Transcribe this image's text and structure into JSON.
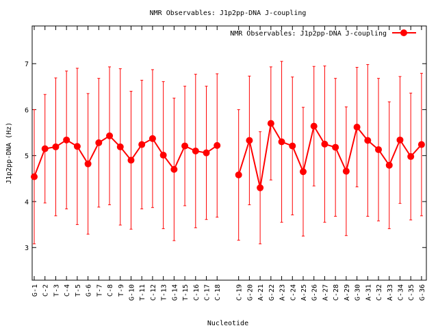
{
  "chart_data": {
    "type": "line",
    "title": "NMR Observables: J1p2pp-DNA J-coupling",
    "xlabel": "Nucleotide",
    "ylabel": "J1p2pp-DNA (Hz)",
    "ylim": [
      2.29,
      7.82
    ],
    "yticks": [
      3,
      4,
      5,
      6,
      7
    ],
    "grid": false,
    "legend": {
      "position": "top-right",
      "entries": [
        "NMR Observables: J1p2pp-DNA J-coupling"
      ]
    },
    "series_color": "#ff0000",
    "gap_after": "C-18",
    "categories": [
      "G-1",
      "C-2",
      "T-3",
      "C-4",
      "T-5",
      "G-6",
      "T-7",
      "C-8",
      "T-9",
      "G-10",
      "T-11",
      "C-12",
      "T-13",
      "G-14",
      "T-15",
      "C-16",
      "C-17",
      "C-18",
      "C-19",
      "G-20",
      "A-21",
      "G-22",
      "A-23",
      "C-24",
      "A-25",
      "G-26",
      "A-27",
      "C-28",
      "A-29",
      "G-30",
      "A-31",
      "C-32",
      "A-33",
      "C-34",
      "C-35",
      "G-36"
    ],
    "values": [
      4.54,
      5.15,
      5.19,
      5.34,
      5.2,
      4.82,
      5.28,
      5.43,
      5.19,
      4.9,
      5.24,
      5.37,
      5.01,
      4.7,
      5.21,
      5.1,
      5.06,
      5.22,
      4.58,
      5.33,
      4.3,
      5.7,
      5.3,
      5.21,
      4.65,
      5.64,
      5.25,
      5.18,
      4.66,
      5.62,
      5.33,
      5.13,
      4.79,
      5.34,
      4.98,
      5.24
    ],
    "errors": [
      1.46,
      1.18,
      1.5,
      1.5,
      1.7,
      1.53,
      1.4,
      1.5,
      1.7,
      1.5,
      1.4,
      1.5,
      1.6,
      1.55,
      1.3,
      1.67,
      1.45,
      1.56,
      1.42,
      1.4,
      1.22,
      1.23,
      1.75,
      1.5,
      1.4,
      1.3,
      1.7,
      1.5,
      1.4,
      1.3,
      1.65,
      1.55,
      1.38,
      1.38,
      1.38,
      1.55
    ]
  }
}
